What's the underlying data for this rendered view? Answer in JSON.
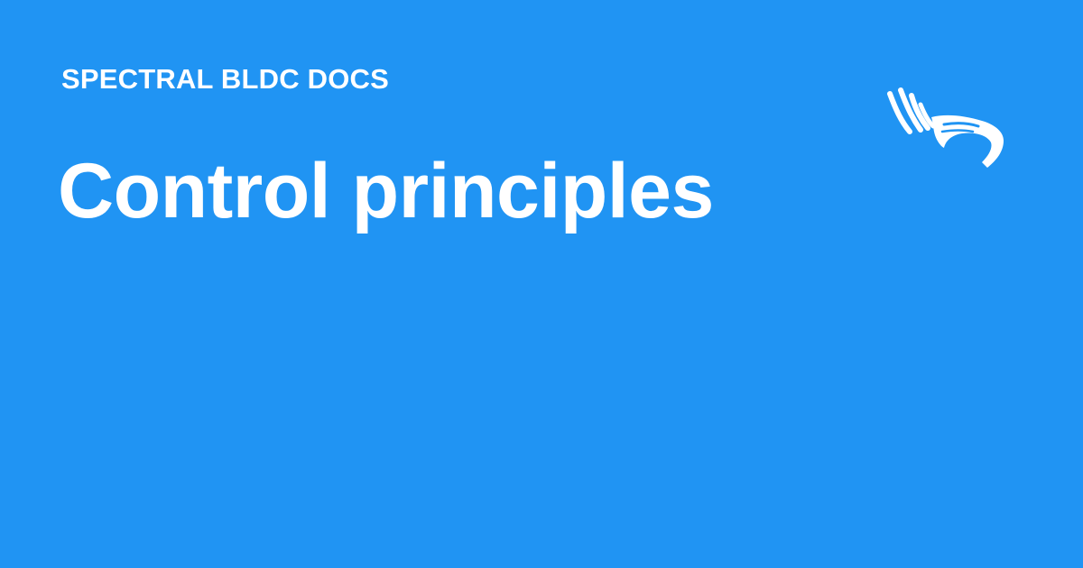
{
  "header": {
    "site_name": "SPECTRAL BLDC DOCS"
  },
  "main": {
    "title": "Control principles"
  },
  "logo": {
    "icon": "hands-logo-icon"
  },
  "colors": {
    "background": "#2094f3",
    "text": "#ffffff"
  }
}
